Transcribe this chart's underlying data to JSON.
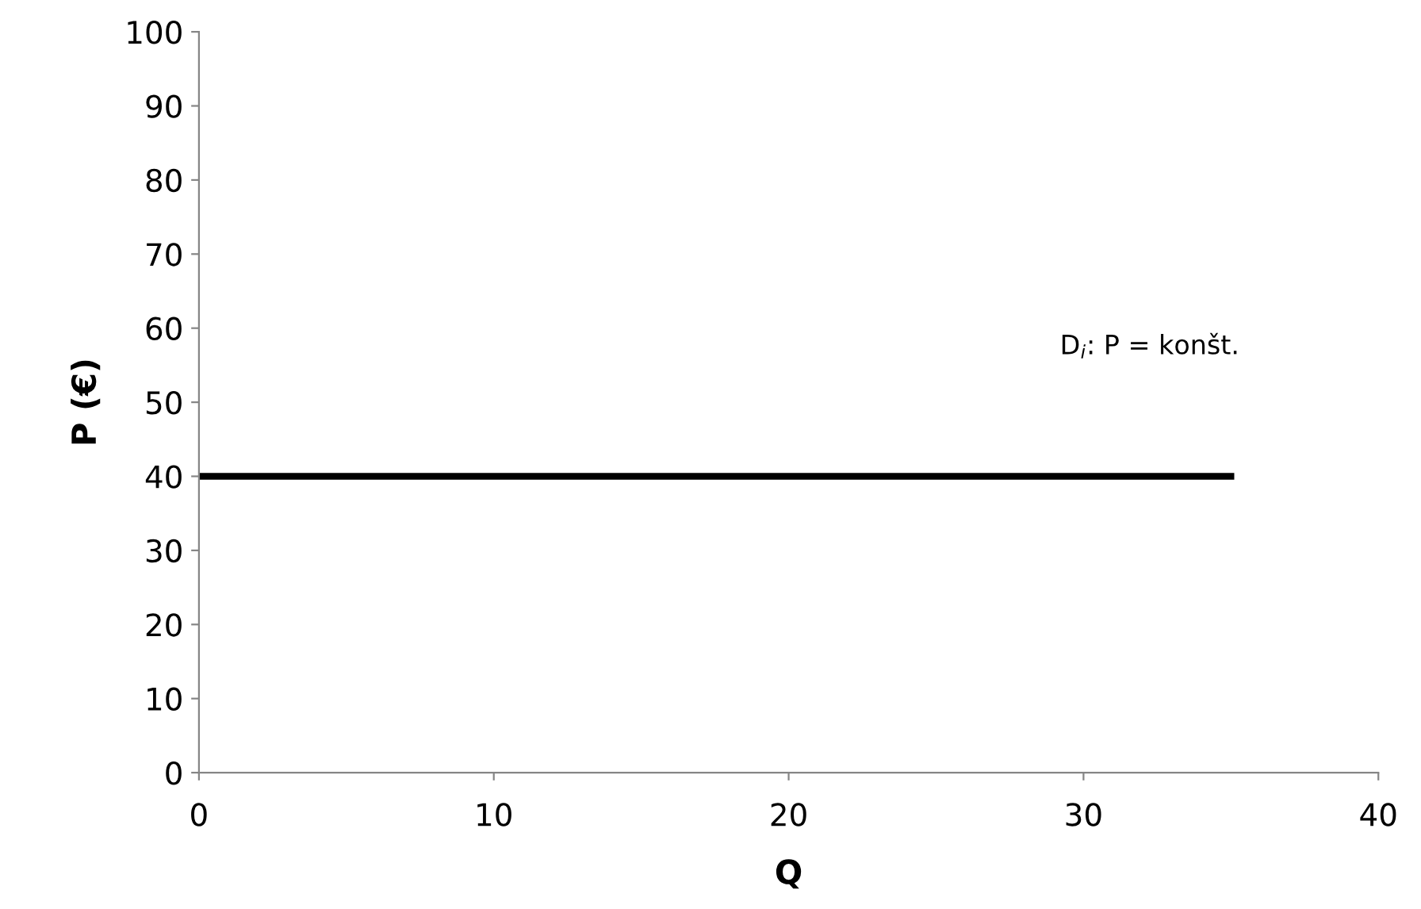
{
  "chart_data": {
    "type": "line",
    "xlabel": "Q",
    "ylabel": "P (€)",
    "series": [
      {
        "color": "#000000",
        "x": [
          0,
          35
        ],
        "values": [
          40,
          40
        ]
      }
    ],
    "xlim": [
      0,
      40
    ],
    "xticks": [
      0,
      10,
      20,
      30,
      40
    ],
    "ylim": [
      0,
      100
    ],
    "yticks": [
      0,
      10,
      20,
      30,
      40,
      50,
      60,
      70,
      80,
      90,
      100
    ],
    "grid": false,
    "legend": false,
    "marker": "none",
    "line_style": "solid",
    "annotations": [
      "D$_{i}$: P = konšt."
    ]
  }
}
